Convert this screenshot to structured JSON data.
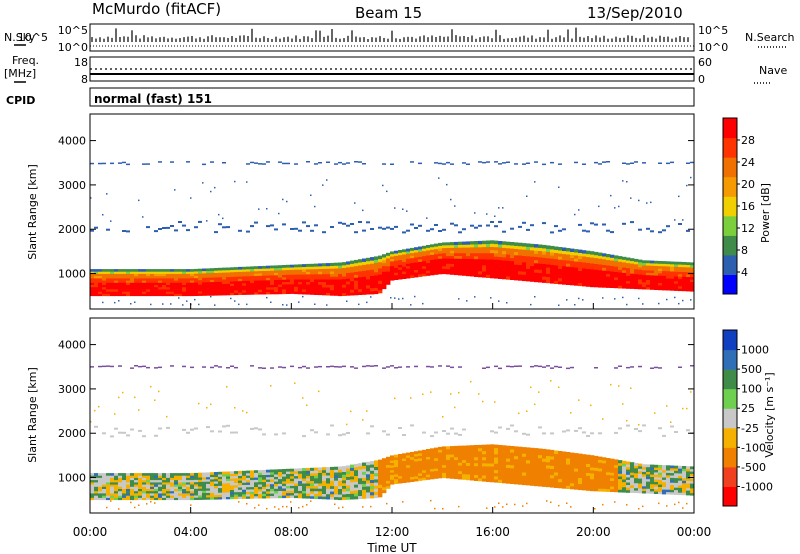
{
  "header": {
    "station": "McMurdo (fitACF)",
    "beam": "Beam 15",
    "date": "13/Sep/2010"
  },
  "top_panels": {
    "nsky_label": "N.Sky",
    "nsky_ticks": [
      "10^5",
      "10^0"
    ],
    "nsearch_label": "N.Search",
    "nsearch_ticks": [
      "10^5",
      "10^0"
    ],
    "freq_label": "Freq.",
    "freq_unit": "[MHz]",
    "freq_ticks": [
      "18",
      "8"
    ],
    "nave_label": "Nave",
    "nave_ticks": [
      "60",
      "0"
    ],
    "cpid_label": "CPID",
    "cpid_value": "normal (fast) 151"
  },
  "colors": {
    "power_scale": [
      "#0000ff",
      "#2d5fb0",
      "#3f8c4a",
      "#7ccf3c",
      "#f0d000",
      "#f59a00",
      "#f07000",
      "#ff3300",
      "#ff0000"
    ],
    "velocity_scale": [
      "#1040c0",
      "#2f6fb8",
      "#3f8c4a",
      "#6fd050",
      "#c8c8c8",
      "#f5b000",
      "#f08000",
      "#f04020",
      "#ff0000"
    ]
  },
  "chart_data": [
    {
      "type": "heatmap",
      "name": "power",
      "ylabel": "Slant Range [km]",
      "yticks": [
        "1000",
        "2000",
        "3000",
        "4000"
      ],
      "ylim": [
        200,
        4600
      ],
      "colorbar_label": "Power [dB]",
      "colorbar_ticks": [
        "4",
        "8",
        "12",
        "16",
        "20",
        "24",
        "28"
      ],
      "colorbar_range": [
        0,
        32
      ],
      "main_echo_band_km": {
        "hours": [
          0,
          4,
          8,
          10,
          11.5,
          12,
          14,
          16,
          18,
          20,
          22,
          24
        ],
        "bottom": [
          500,
          500,
          550,
          500,
          550,
          850,
          1000,
          900,
          800,
          700,
          650,
          600
        ],
        "top": [
          1100,
          1100,
          1200,
          1250,
          1400,
          1500,
          1700,
          1750,
          1650,
          1500,
          1300,
          1250
        ]
      }
    },
    {
      "type": "heatmap",
      "name": "velocity",
      "ylabel": "Slant Range [km]",
      "yticks": [
        "1000",
        "2000",
        "3000",
        "4000"
      ],
      "ylim": [
        200,
        4600
      ],
      "colorbar_label": "Velocity [m s⁻¹]",
      "colorbar_ticks": [
        "1000",
        "500",
        "100",
        "25",
        "-25",
        "-100",
        "-500",
        "-1000"
      ],
      "main_echo_band_km": {
        "hours": [
          0,
          4,
          8,
          10,
          11.5,
          12,
          14,
          16,
          18,
          20,
          22,
          24
        ],
        "bottom": [
          500,
          500,
          550,
          500,
          550,
          850,
          1000,
          900,
          800,
          700,
          650,
          600
        ],
        "top": [
          1100,
          1100,
          1200,
          1250,
          1400,
          1500,
          1700,
          1750,
          1650,
          1500,
          1300,
          1250
        ]
      }
    }
  ],
  "xaxis": {
    "ticks": [
      "00:00",
      "04:00",
      "08:00",
      "12:00",
      "16:00",
      "20:00",
      "00:00"
    ],
    "label": "Time UT"
  }
}
